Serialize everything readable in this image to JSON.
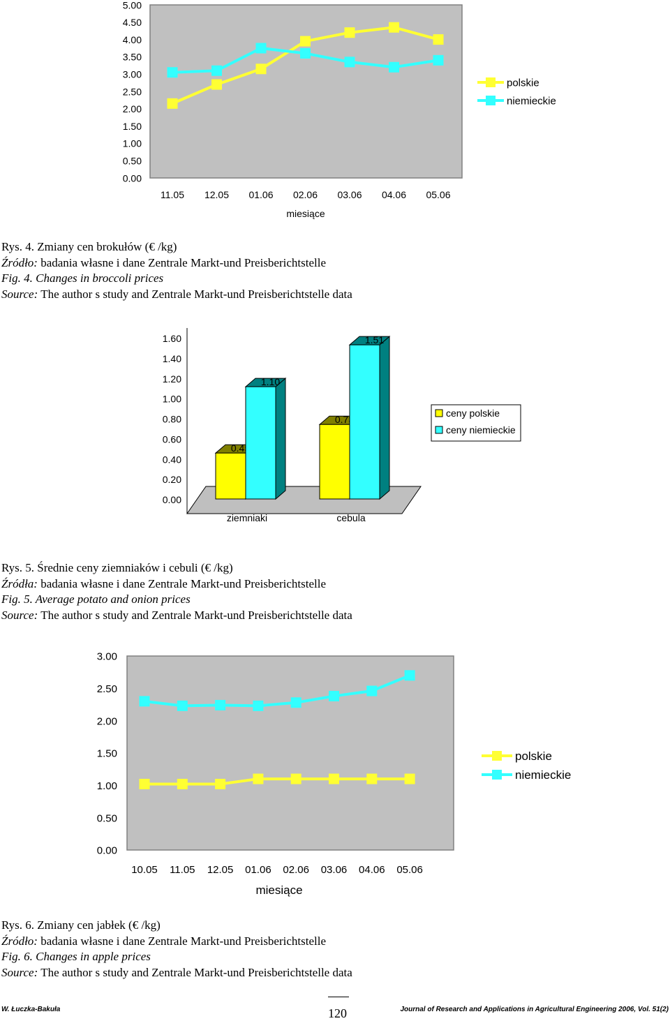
{
  "chart_data": [
    {
      "type": "line",
      "x": [
        "11.05",
        "12.05",
        "01.06",
        "02.06",
        "03.06",
        "04.06",
        "05.06"
      ],
      "xlabel": "miesiące",
      "ylim": [
        0,
        5
      ],
      "yticks": [
        "5.00",
        "4.50",
        "4.00",
        "3.50",
        "3.00",
        "2.50",
        "2.00",
        "1.50",
        "1.00",
        "0.50",
        "0.00"
      ],
      "series": [
        {
          "name": "polskie",
          "color": "#ffff33",
          "values": [
            2.15,
            2.7,
            3.15,
            3.95,
            4.2,
            4.35,
            4.0
          ]
        },
        {
          "name": "niemieckie",
          "color": "#33ffff",
          "values": [
            3.05,
            3.1,
            3.75,
            3.6,
            3.35,
            3.2,
            3.4
          ]
        }
      ]
    },
    {
      "type": "bar",
      "categories": [
        "ziemniaki",
        "cebula"
      ],
      "ylim": [
        0,
        1.6
      ],
      "yticks": [
        "1.60",
        "1.40",
        "1.20",
        "1.00",
        "0.80",
        "0.60",
        "0.40",
        "0.20",
        "0.00"
      ],
      "series": [
        {
          "name": "ceny polskie",
          "color": "#ffff00",
          "values": [
            0.45,
            0.73
          ],
          "labels": [
            "0.45",
            "0.73"
          ]
        },
        {
          "name": "ceny niemieckie",
          "color": "#33ffff",
          "values": [
            1.1,
            1.51
          ],
          "labels": [
            "1.10",
            "1.51"
          ]
        }
      ]
    },
    {
      "type": "line",
      "x": [
        "10.05",
        "11.05",
        "12.05",
        "01.06",
        "02.06",
        "03.06",
        "04.06",
        "05.06"
      ],
      "xlabel": "miesiące",
      "ylim": [
        0,
        3
      ],
      "yticks": [
        "3.00",
        "2.50",
        "2.00",
        "1.50",
        "1.00",
        "0.50",
        "0.00"
      ],
      "series": [
        {
          "name": "polskie",
          "color": "#ffff33",
          "values": [
            1.02,
            1.02,
            1.02,
            1.1,
            1.1,
            1.1,
            1.1,
            1.1
          ]
        },
        {
          "name": "niemieckie",
          "color": "#33ffff",
          "values": [
            2.3,
            2.23,
            2.24,
            2.23,
            2.28,
            2.38,
            2.46,
            2.7
          ]
        }
      ]
    }
  ],
  "captions": [
    {
      "pl_title": "Rys. 4. Zmiany cen brokułów (€ /kg)",
      "pl_source_label": "Źródło:",
      "pl_source": " badania własne i dane Zentrale Markt-und Preisberichtstelle",
      "en_title": "Fig. 4. Changes in broccoli prices",
      "en_source_label": "Source:",
      "en_source": " The author s study and Zentrale Markt-und Preisberichtstelle data"
    },
    {
      "pl_title": "Rys. 5. Średnie ceny ziemniaków i cebuli (€ /kg)",
      "pl_source_label": "Źródła:",
      "pl_source": " badania własne i dane Zentrale Markt-und Preisberichtstelle",
      "en_title": "Fig. 5. Average potato and onion prices",
      "en_source_label": "Source:",
      "en_source": " The author s study and Zentrale Markt-und Preisberichtstelle data"
    },
    {
      "pl_title": "Rys. 6. Zmiany cen jabłek (€ /kg)",
      "pl_source_label": "Źródło:",
      "pl_source": " badania własne i dane Zentrale Markt-und Preisberichtstelle",
      "en_title": "Fig. 6. Changes in apple prices",
      "en_source_label": "Source:",
      "en_source": " The author s study and Zentrale Markt-und Preisberichtstelle data"
    }
  ],
  "footer": {
    "author": "W. Łuczka-Bakuła",
    "page_number": "120",
    "journal": "Journal of Research and Applications in Agricultural Engineering  2006, Vol. 51(2)"
  }
}
